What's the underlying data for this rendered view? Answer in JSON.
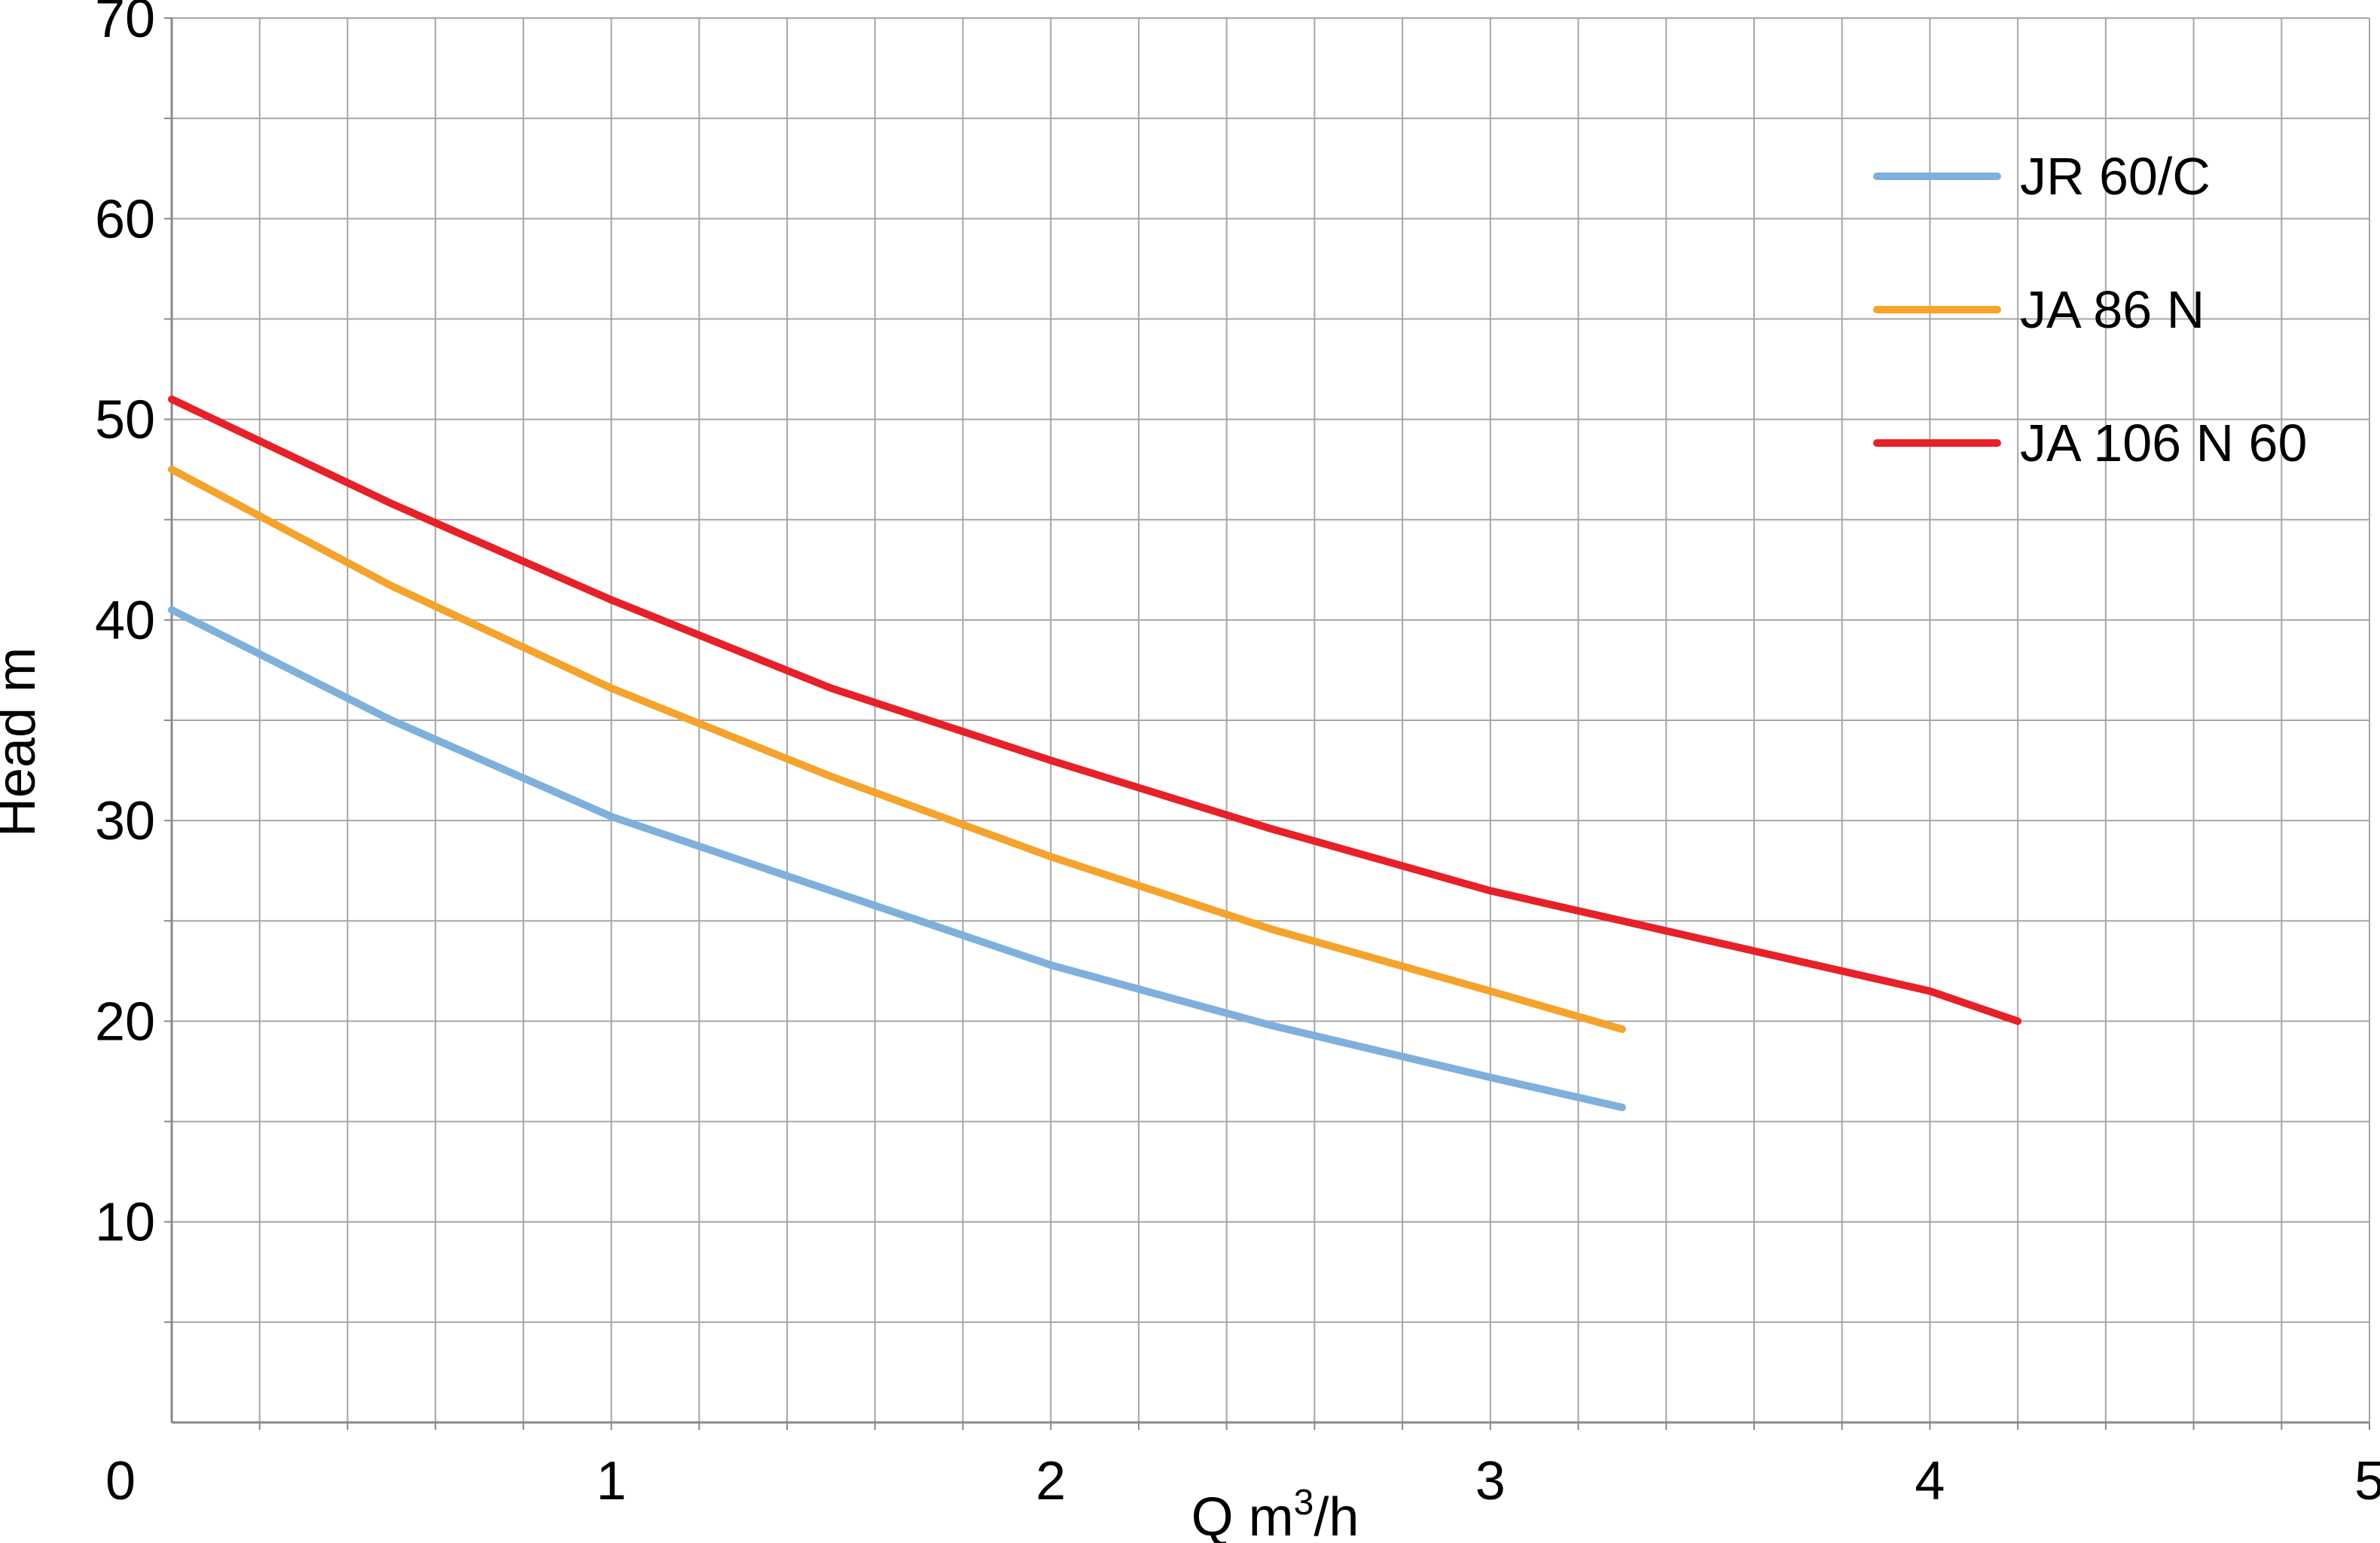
{
  "chart_data": {
    "type": "line",
    "title": "",
    "xlabel_parts": {
      "prefix": "Q m",
      "sup": "3",
      "suffix": "/h"
    },
    "ylabel": "Head m",
    "xlim": [
      0,
      5
    ],
    "ylim": [
      0,
      70
    ],
    "x_minor_step": 0.2,
    "y_minor_step": 5,
    "x_tick_labels": [
      "0",
      "1",
      "2",
      "3",
      "4",
      "5"
    ],
    "y_tick_labels": [
      "70",
      "60",
      "50",
      "40",
      "30",
      "20",
      "10"
    ],
    "grid": true,
    "legend_position": "top-right",
    "series": [
      {
        "name": "JR 60/C",
        "color": "#7FB0DC",
        "points": [
          [
            0,
            40.5
          ],
          [
            0.5,
            35.0
          ],
          [
            1,
            30.2
          ],
          [
            1.5,
            26.5
          ],
          [
            2,
            22.8
          ],
          [
            2.5,
            19.8
          ],
          [
            3,
            17.2
          ],
          [
            3.3,
            15.7
          ]
        ]
      },
      {
        "name": "JA 86 N",
        "color": "#F4A32C",
        "points": [
          [
            0,
            47.5
          ],
          [
            0.5,
            41.7
          ],
          [
            1,
            36.6
          ],
          [
            1.5,
            32.2
          ],
          [
            2,
            28.2
          ],
          [
            2.5,
            24.6
          ],
          [
            3,
            21.5
          ],
          [
            3.3,
            19.6
          ]
        ]
      },
      {
        "name": "JA 106 N 60",
        "color": "#E62129",
        "points": [
          [
            0,
            51.0
          ],
          [
            0.5,
            45.8
          ],
          [
            1,
            41.0
          ],
          [
            1.5,
            36.6
          ],
          [
            2,
            33.0
          ],
          [
            2.5,
            29.6
          ],
          [
            3,
            26.5
          ],
          [
            3.5,
            24.0
          ],
          [
            4,
            21.5
          ],
          [
            4.2,
            20.0
          ]
        ]
      }
    ],
    "colors": {
      "background": "#FFFFFF",
      "grid": "#A6A6A6",
      "axis": "#898989",
      "text": "#000000"
    }
  }
}
